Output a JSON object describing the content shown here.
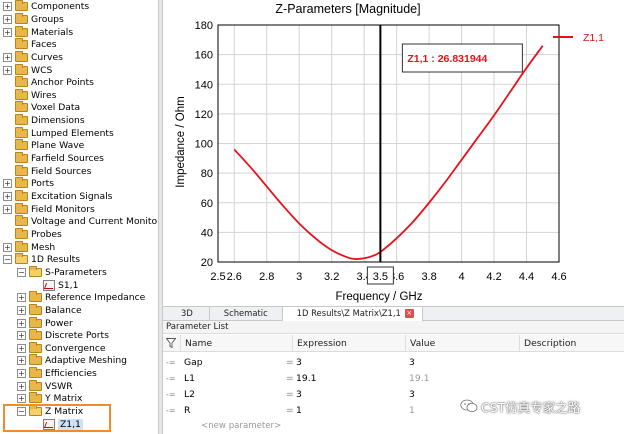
{
  "tree": {
    "items": [
      {
        "label": "Components",
        "level": 0,
        "type": "folder",
        "expander": "+"
      },
      {
        "label": "Groups",
        "level": 0,
        "type": "folder",
        "expander": "+"
      },
      {
        "label": "Materials",
        "level": 0,
        "type": "folder",
        "expander": "+"
      },
      {
        "label": "Faces",
        "level": 0,
        "type": "folder",
        "expander": ""
      },
      {
        "label": "Curves",
        "level": 0,
        "type": "folder",
        "expander": "+"
      },
      {
        "label": "WCS",
        "level": 0,
        "type": "folder",
        "expander": "+"
      },
      {
        "label": "Anchor Points",
        "level": 0,
        "type": "folder",
        "expander": ""
      },
      {
        "label": "Wires",
        "level": 0,
        "type": "folder",
        "expander": ""
      },
      {
        "label": "Voxel Data",
        "level": 0,
        "type": "folder",
        "expander": ""
      },
      {
        "label": "Dimensions",
        "level": 0,
        "type": "folder",
        "expander": ""
      },
      {
        "label": "Lumped Elements",
        "level": 0,
        "type": "folder",
        "expander": ""
      },
      {
        "label": "Plane Wave",
        "level": 0,
        "type": "folder",
        "expander": ""
      },
      {
        "label": "Farfield Sources",
        "level": 0,
        "type": "folder",
        "expander": ""
      },
      {
        "label": "Field Sources",
        "level": 0,
        "type": "folder",
        "expander": ""
      },
      {
        "label": "Ports",
        "level": 0,
        "type": "folder",
        "expander": "+"
      },
      {
        "label": "Excitation Signals",
        "level": 0,
        "type": "folder",
        "expander": "+"
      },
      {
        "label": "Field Monitors",
        "level": 0,
        "type": "folder",
        "expander": "+"
      },
      {
        "label": "Voltage and Current Monitors",
        "level": 0,
        "type": "folder",
        "expander": ""
      },
      {
        "label": "Probes",
        "level": 0,
        "type": "folder",
        "expander": ""
      },
      {
        "label": "Mesh",
        "level": 0,
        "type": "folder",
        "expander": "+"
      },
      {
        "label": "1D Results",
        "level": 0,
        "type": "folder-open",
        "expander": "−"
      },
      {
        "label": "S-Parameters",
        "level": 1,
        "type": "folder-open",
        "expander": "−"
      },
      {
        "label": "S1,1",
        "level": 2,
        "type": "result",
        "expander": ""
      },
      {
        "label": "Reference Impedance",
        "level": 1,
        "type": "folder",
        "expander": "+"
      },
      {
        "label": "Balance",
        "level": 1,
        "type": "folder",
        "expander": "+"
      },
      {
        "label": "Power",
        "level": 1,
        "type": "folder",
        "expander": "+"
      },
      {
        "label": "Discrete Ports",
        "level": 1,
        "type": "folder",
        "expander": "+"
      },
      {
        "label": "Convergence",
        "level": 1,
        "type": "folder",
        "expander": "+"
      },
      {
        "label": "Adaptive Meshing",
        "level": 1,
        "type": "folder",
        "expander": "+"
      },
      {
        "label": "Efficiencies",
        "level": 1,
        "type": "folder",
        "expander": "+"
      },
      {
        "label": "VSWR",
        "level": 1,
        "type": "folder",
        "expander": "+"
      },
      {
        "label": "Y Matrix",
        "level": 1,
        "type": "folder",
        "expander": "+"
      },
      {
        "label": "Z Matrix",
        "level": 1,
        "type": "folder-open",
        "expander": "−"
      },
      {
        "label": "Z1,1",
        "level": 2,
        "type": "result",
        "expander": "",
        "selected": true
      }
    ]
  },
  "chart_data": {
    "type": "line",
    "title": "Z-Parameters [Magnitude]",
    "xlabel": "Frequency / GHz",
    "ylabel": "Impedance / Ohm",
    "xlim": [
      2.5,
      4.6
    ],
    "ylim": [
      20,
      180
    ],
    "xticks": [
      "2.5",
      "2.6",
      "2.8",
      "3",
      "3.2",
      "3.4",
      "3.6",
      "3.8",
      "4",
      "4.2",
      "4.4",
      "4.6"
    ],
    "xtick_values": [
      2.5,
      2.6,
      2.8,
      3.0,
      3.2,
      3.4,
      3.6,
      3.8,
      4.0,
      4.2,
      4.4,
      4.6
    ],
    "yticks": [
      "20",
      "40",
      "60",
      "80",
      "100",
      "120",
      "140",
      "160",
      "180"
    ],
    "ytick_values": [
      20,
      40,
      60,
      80,
      100,
      120,
      140,
      160,
      180
    ],
    "grid": true,
    "legend_position": "top-right",
    "marker": {
      "x": 3.5,
      "label": "Z1,1 : 26.831944",
      "value_label": "3.5"
    },
    "series": [
      {
        "name": "Z1,1",
        "color": "#e8101a",
        "x": [
          2.6,
          2.7,
          2.8,
          2.9,
          3.0,
          3.1,
          3.2,
          3.3,
          3.35,
          3.4,
          3.45,
          3.5,
          3.6,
          3.7,
          3.8,
          3.9,
          4.0,
          4.1,
          4.2,
          4.3,
          4.4,
          4.5
        ],
        "y": [
          96,
          84,
          71,
          58,
          46,
          36,
          28,
          23,
          22,
          22.5,
          24,
          26.8,
          36,
          47,
          60,
          74,
          89,
          104,
          119,
          135,
          151,
          166
        ]
      }
    ]
  },
  "tabs": [
    {
      "label": "3D",
      "active": false
    },
    {
      "label": "Schematic",
      "active": false
    },
    {
      "label": "1D Results\\Z Matrix\\Z1,1",
      "active": true,
      "close": "×"
    }
  ],
  "params": {
    "title": "Parameter List",
    "columns": [
      "Name",
      "Expression",
      "Value",
      "Description"
    ],
    "rows": [
      {
        "mark": "-=",
        "name": "Gap",
        "eq": "=",
        "expr": "3",
        "value": "3",
        "desc": ""
      },
      {
        "mark": "-=",
        "name": "L1",
        "eq": "=",
        "expr": "19.1",
        "value": "19.1",
        "desc": ""
      },
      {
        "mark": "-=",
        "name": "L2",
        "eq": "=",
        "expr": "3",
        "value": "3",
        "desc": ""
      },
      {
        "mark": "-=",
        "name": "R",
        "eq": "=",
        "expr": "1",
        "value": "1",
        "desc": ""
      }
    ],
    "new_param": "<new parameter>"
  },
  "watermark": "CST仿真专家之路"
}
